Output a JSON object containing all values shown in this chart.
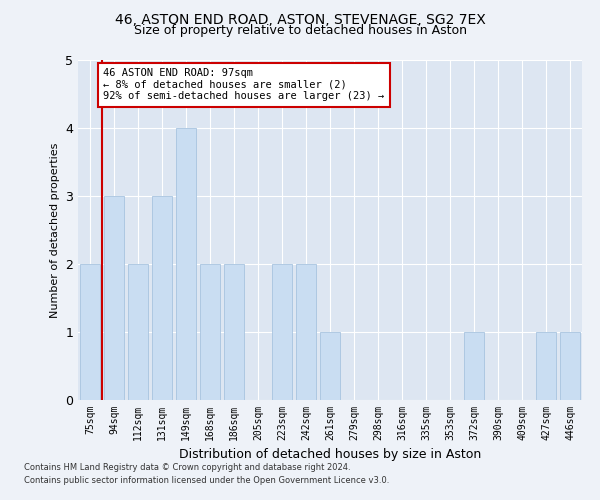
{
  "title1": "46, ASTON END ROAD, ASTON, STEVENAGE, SG2 7EX",
  "title2": "Size of property relative to detached houses in Aston",
  "xlabel": "Distribution of detached houses by size in Aston",
  "ylabel": "Number of detached properties",
  "categories": [
    "75sqm",
    "94sqm",
    "112sqm",
    "131sqm",
    "149sqm",
    "168sqm",
    "186sqm",
    "205sqm",
    "223sqm",
    "242sqm",
    "261sqm",
    "279sqm",
    "298sqm",
    "316sqm",
    "335sqm",
    "353sqm",
    "372sqm",
    "390sqm",
    "409sqm",
    "427sqm",
    "446sqm"
  ],
  "values": [
    2,
    3,
    2,
    3,
    4,
    2,
    2,
    0,
    2,
    2,
    1,
    0,
    0,
    0,
    0,
    0,
    1,
    0,
    0,
    1,
    1
  ],
  "bar_color": "#c9ddf2",
  "bar_edge_color": "#a8c4e0",
  "vline_x": 0.5,
  "vline_color": "#cc0000",
  "annotation_text": "46 ASTON END ROAD: 97sqm\n← 8% of detached houses are smaller (2)\n92% of semi-detached houses are larger (23) →",
  "annotation_box_color": "#ffffff",
  "annotation_box_edge": "#cc0000",
  "ylim": [
    0,
    5
  ],
  "yticks": [
    0,
    1,
    2,
    3,
    4,
    5
  ],
  "footer1": "Contains HM Land Registry data © Crown copyright and database right 2024.",
  "footer2": "Contains public sector information licensed under the Open Government Licence v3.0.",
  "bg_color": "#eef2f8",
  "plot_bg_color": "#dde6f2",
  "title1_fontsize": 10,
  "title2_fontsize": 9,
  "xlabel_fontsize": 9,
  "ylabel_fontsize": 8,
  "tick_fontsize": 7,
  "footer_fontsize": 6
}
